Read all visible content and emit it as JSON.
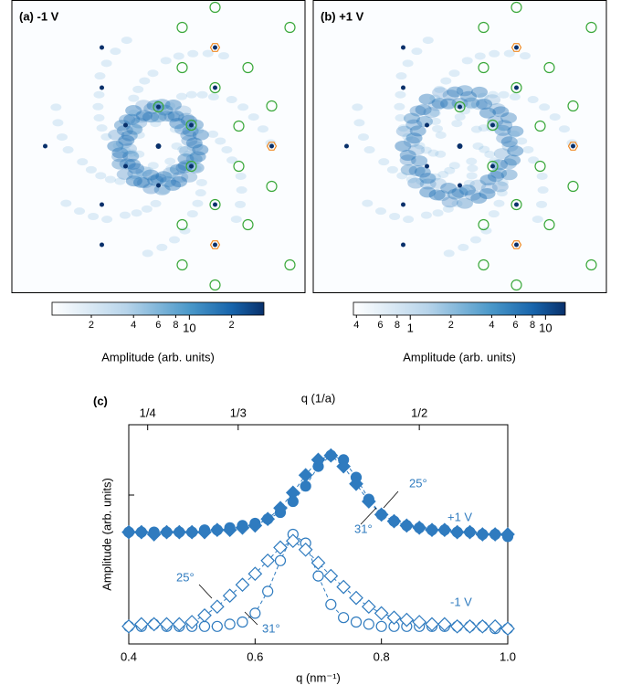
{
  "chart_data": [
    {
      "type": "image",
      "title": "(a) -1 V",
      "colorbar_label": "Amplitude (arb. units)",
      "log_scale": true,
      "clim": [
        1.05,
        34
      ],
      "cticks": [
        {
          "value": 2,
          "label": "2"
        },
        {
          "value": 4,
          "label": "4"
        },
        {
          "value": 6,
          "label": "6"
        },
        {
          "value": 8,
          "label": "8"
        },
        10,
        {
          "value": 20,
          "label": "2"
        }
      ]
    },
    {
      "type": "image",
      "title": "(b) +1 V",
      "colorbar_label": "Amplitude (arb. units)",
      "log_scale": true,
      "clim": [
        0.38,
        14
      ],
      "cticks": [
        {
          "value": 0.4,
          "label": "4"
        },
        {
          "value": 0.6,
          "label": "6"
        },
        {
          "value": 0.8,
          "label": "8"
        },
        1,
        {
          "value": 2,
          "label": "2"
        },
        {
          "value": 4,
          "label": "4"
        },
        {
          "value": 6,
          "label": "6"
        },
        {
          "value": 8,
          "label": "8"
        },
        10
      ]
    },
    {
      "type": "scatter",
      "title": "(c)",
      "xlabel": "q (nm⁻¹)",
      "x2label": "q (1/a)",
      "ylabel": "Amplitude (arb. units)",
      "xlim": [
        0.4,
        1.0
      ],
      "xticks": [
        0.4,
        0.6,
        0.8,
        {
          "value": 1,
          "label": "1.0"
        }
      ],
      "x2lim": [
        0.2326,
        0.5814
      ],
      "x2ticks": [
        {
          "value": 0.25,
          "label": "1/4"
        },
        {
          "value": 0.3333,
          "label": "1/3"
        },
        {
          "value": 0.5,
          "label": "1/2"
        }
      ],
      "ylim": [
        0,
        1
      ],
      "color": "#2f7bbf",
      "x": [
        0.4,
        0.42,
        0.44,
        0.46,
        0.48,
        0.5,
        0.52,
        0.54,
        0.56,
        0.58,
        0.6,
        0.62,
        0.64,
        0.66,
        0.68,
        0.7,
        0.72,
        0.74,
        0.76,
        0.78,
        0.8,
        0.82,
        0.84,
        0.86,
        0.88,
        0.9,
        0.92,
        0.94,
        0.96,
        0.98,
        1.0
      ],
      "series": [
        {
          "marker": "circle",
          "filled": true,
          "values": [
            0.51,
            0.51,
            0.51,
            0.51,
            0.51,
            0.51,
            0.52,
            0.52,
            0.53,
            0.54,
            0.55,
            0.57,
            0.6,
            0.65,
            0.72,
            0.81,
            0.86,
            0.84,
            0.76,
            0.66,
            0.59,
            0.56,
            0.54,
            0.53,
            0.52,
            0.52,
            0.51,
            0.51,
            0.5,
            0.5,
            0.49
          ]
        },
        {
          "marker": "diamond",
          "filled": true,
          "values": [
            0.51,
            0.51,
            0.5,
            0.51,
            0.51,
            0.51,
            0.51,
            0.52,
            0.52,
            0.53,
            0.54,
            0.57,
            0.62,
            0.69,
            0.77,
            0.84,
            0.86,
            0.81,
            0.73,
            0.65,
            0.59,
            0.56,
            0.54,
            0.53,
            0.52,
            0.52,
            0.51,
            0.51,
            0.5,
            0.5,
            0.5
          ]
        },
        {
          "marker": "circle",
          "filled": false,
          "values": [
            0.08,
            0.08,
            0.09,
            0.08,
            0.08,
            0.08,
            0.08,
            0.08,
            0.09,
            0.1,
            0.14,
            0.24,
            0.38,
            0.5,
            0.46,
            0.31,
            0.18,
            0.12,
            0.1,
            0.09,
            0.08,
            0.08,
            0.08,
            0.08,
            0.08,
            0.08,
            0.08,
            0.08,
            0.08,
            0.07,
            0.07
          ]
        },
        {
          "marker": "diamond",
          "filled": false,
          "values": [
            0.08,
            0.09,
            0.09,
            0.09,
            0.09,
            0.1,
            0.13,
            0.17,
            0.22,
            0.27,
            0.32,
            0.38,
            0.44,
            0.47,
            0.43,
            0.37,
            0.31,
            0.26,
            0.21,
            0.17,
            0.14,
            0.12,
            0.11,
            0.1,
            0.09,
            0.09,
            0.08,
            0.08,
            0.08,
            0.08,
            0.07
          ]
        }
      ],
      "annotations": [
        "25°",
        "31°",
        "+1 V",
        "25°",
        "31°",
        "-1 V"
      ]
    }
  ]
}
